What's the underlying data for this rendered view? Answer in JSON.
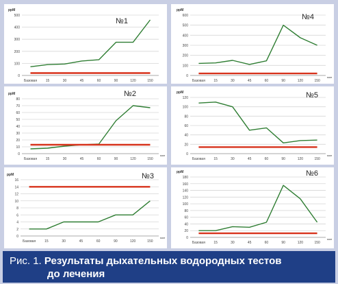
{
  "caption": {
    "prefix": "Рис. 1.",
    "line1": "Результаты дыхательных водородных тестов",
    "line2": "до лечения"
  },
  "colors": {
    "data_line": "#2e7d32",
    "baseline_line": "#d7321b",
    "caption_bg": "#1f3f86"
  },
  "chart_data": [
    {
      "id": "panel-1",
      "type": "line",
      "title": "№1",
      "ylabel": "ppM",
      "xunit": "",
      "categories": [
        "Базовая",
        "15",
        "30",
        "45",
        "60",
        "90",
        "120",
        "150"
      ],
      "yticks": [
        "0",
        "100",
        "200",
        "300",
        "400",
        "500"
      ],
      "ylim": [
        0,
        500
      ],
      "series": [
        {
          "values": [
            72,
            90,
            95,
            120,
            130,
            275,
            275,
            460
          ]
        },
        {
          "values": [
            20,
            20,
            20,
            20,
            20,
            20,
            20,
            20
          ]
        }
      ]
    },
    {
      "id": "panel-4",
      "type": "line",
      "title": "№4",
      "ylabel": "ppM",
      "xunit": "мин",
      "categories": [
        "Базовая",
        "15",
        "30",
        "45",
        "60",
        "90",
        "120",
        "150"
      ],
      "yticks": [
        "0",
        "100",
        "200",
        "300",
        "400",
        "500",
        "600"
      ],
      "ylim": [
        0,
        600
      ],
      "series": [
        {
          "values": [
            120,
            125,
            150,
            110,
            145,
            500,
            375,
            300
          ]
        },
        {
          "values": [
            20,
            20,
            20,
            20,
            20,
            20,
            20,
            20
          ]
        }
      ]
    },
    {
      "id": "panel-2",
      "type": "line",
      "title": "№2",
      "ylabel": "ppM",
      "xunit": "мин",
      "categories": [
        "Базовая",
        "15",
        "30",
        "45",
        "60",
        "90",
        "120",
        "150"
      ],
      "yticks": [
        "0",
        "10",
        "20",
        "30",
        "40",
        "50",
        "60",
        "70",
        "80"
      ],
      "ylim": [
        0,
        80
      ],
      "series": [
        {
          "values": [
            7,
            8,
            11,
            13,
            14,
            48,
            70,
            67
          ]
        },
        {
          "values": [
            13,
            13,
            13,
            13,
            13,
            13,
            13,
            13
          ]
        }
      ]
    },
    {
      "id": "panel-5",
      "type": "line",
      "title": "№5",
      "ylabel": "ppM",
      "xunit": "мин",
      "categories": [
        "Базовая",
        "15",
        "30",
        "45",
        "60",
        "90",
        "120",
        "150"
      ],
      "yticks": [
        "0",
        "20",
        "40",
        "60",
        "80",
        "100",
        "120"
      ],
      "ylim": [
        0,
        120
      ],
      "series": [
        {
          "values": [
            108,
            110,
            100,
            50,
            55,
            23,
            28,
            29
          ]
        },
        {
          "values": [
            14,
            14,
            14,
            14,
            14,
            14,
            14,
            14
          ]
        }
      ]
    },
    {
      "id": "panel-3",
      "type": "line",
      "title": "№3",
      "ylabel": "ppM",
      "xunit": "мин",
      "categories": [
        "Базовая",
        "15",
        "30",
        "45",
        "60",
        "90",
        "120",
        "150"
      ],
      "yticks": [
        "0",
        "2",
        "4",
        "6",
        "8",
        "10",
        "12",
        "14",
        "16"
      ],
      "ylim": [
        0,
        16
      ],
      "series": [
        {
          "values": [
            2,
            2,
            4,
            4,
            4,
            6,
            6,
            10
          ]
        },
        {
          "values": [
            14,
            14,
            14,
            14,
            14,
            14,
            14,
            14
          ]
        }
      ]
    },
    {
      "id": "panel-6",
      "type": "line",
      "title": "№6",
      "ylabel": "ppM",
      "xunit": "мин",
      "categories": [
        "Базовая",
        "15",
        "30",
        "45",
        "60",
        "90",
        "120",
        "150"
      ],
      "yticks": [
        "0",
        "20",
        "40",
        "60",
        "80",
        "100",
        "120",
        "140",
        "160",
        "180"
      ],
      "ylim": [
        0,
        180
      ],
      "series": [
        {
          "values": [
            20,
            20,
            32,
            30,
            45,
            155,
            115,
            45
          ]
        },
        {
          "values": [
            12,
            12,
            12,
            12,
            12,
            12,
            12,
            12
          ]
        }
      ]
    }
  ]
}
